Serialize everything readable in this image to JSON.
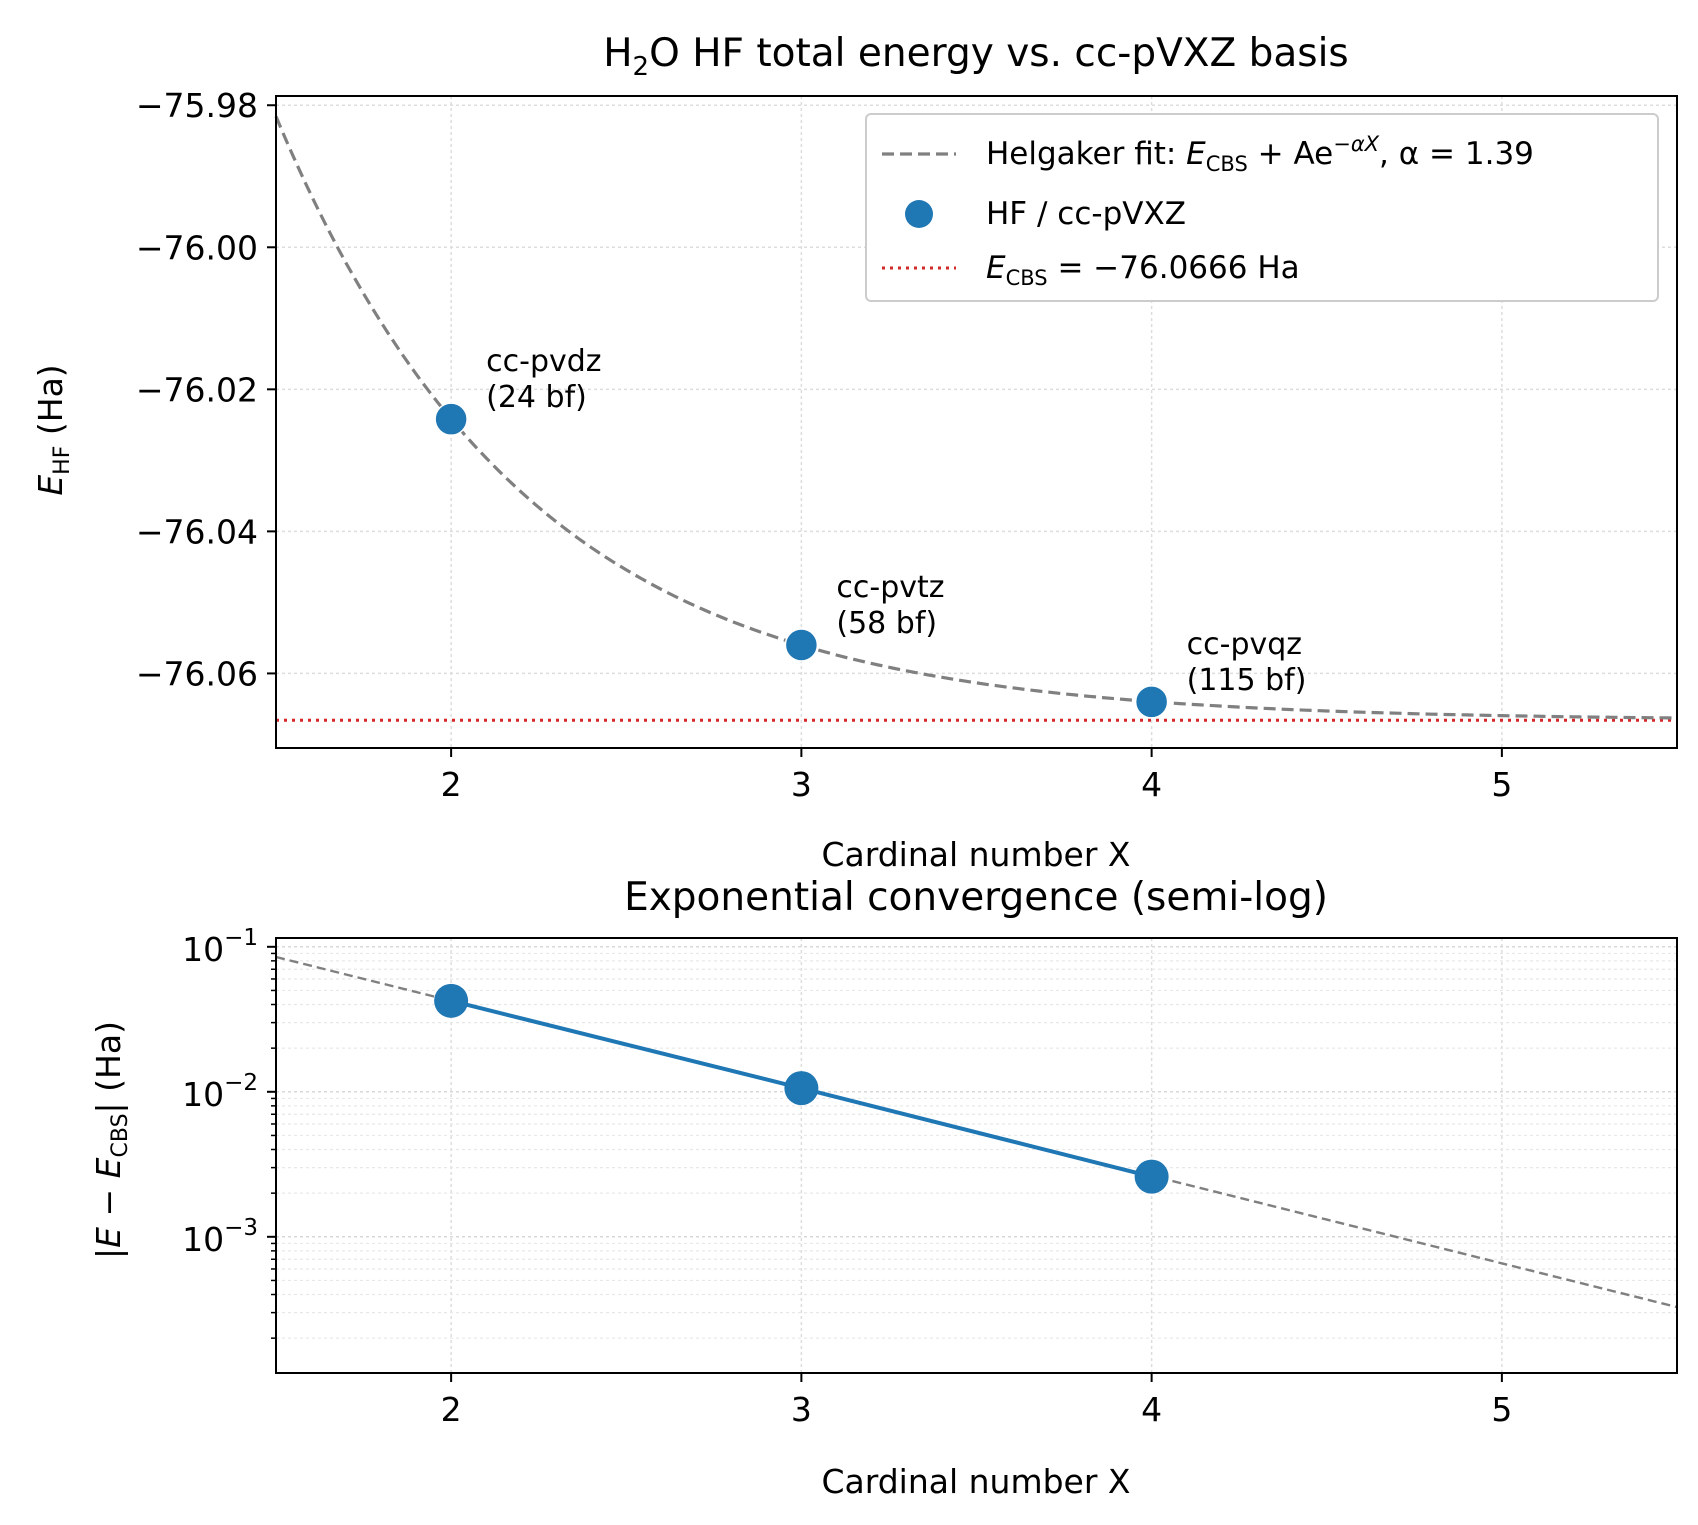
{
  "colors": {
    "points": "#1f77b4",
    "fit": "#808080",
    "cbs_line": "#d62728",
    "grid": "#dddddd",
    "axes": "#000000"
  },
  "chart_data": [
    {
      "type": "scatter",
      "title_main": "H",
      "title_sub": "2",
      "title_rest": "O HF total energy vs. cc-pVXZ basis",
      "xlabel": "Cardinal number X",
      "ylabel_sym": "E",
      "ylabel_sub": "HF",
      "ylabel_unit": " (Ha)",
      "xlim": [
        1.5,
        5.5
      ],
      "ylim": [
        -76.0705,
        -75.9787
      ],
      "x_ticks": [
        2,
        3,
        4,
        5
      ],
      "x_tick_labels": [
        "2",
        "3",
        "4",
        "5"
      ],
      "y_ticks": [
        -75.98,
        -76.0,
        -76.02,
        -76.04,
        -76.06
      ],
      "y_tick_labels": [
        "−75.98",
        "−76.00",
        "−76.02",
        "−76.04",
        "−76.06"
      ],
      "grid": true,
      "series": [
        {
          "name": "HF / cc-pVXZ",
          "kind": "points",
          "x": [
            2,
            3,
            4
          ],
          "y": [
            -76.0242,
            -76.056,
            -76.064
          ]
        },
        {
          "name": "Helgaker fit",
          "kind": "dashed-curve",
          "E_cbs": -76.0666,
          "A": 0.684,
          "alpha": 1.39
        },
        {
          "name": "E_CBS",
          "kind": "dotted-hline",
          "y": -76.0666
        }
      ],
      "annotations": [
        {
          "x": 2,
          "line1": "cc-pvdz",
          "line2": "(24 bf)"
        },
        {
          "x": 3,
          "line1": "cc-pvtz",
          "line2": "(58 bf)"
        },
        {
          "x": 4,
          "line1": "cc-pvqz",
          "line2": "(115 bf)"
        }
      ],
      "legend": {
        "placement": "top-right",
        "fit_prefix": "Helgaker fit: ",
        "fit_formula_E": "E",
        "fit_formula_cbs": "CBS",
        "fit_formula_rest": " + Ae",
        "fit_formula_exp": "−αX",
        "fit_alpha": ", α = 1.39",
        "points": "HF / cc-pVXZ",
        "cbs_E": "E",
        "cbs_sub": "CBS",
        "cbs_rest": " = −76.0666 Ha"
      }
    },
    {
      "type": "line",
      "title": "Exponential convergence (semi-log)",
      "xlabel": "Cardinal number X",
      "ylabel_pre": "|",
      "ylabel_E": "E",
      "ylabel_minus": " − ",
      "ylabel_E2": "E",
      "ylabel_sub": "CBS",
      "ylabel_post": "| (Ha)",
      "y_scale": "log",
      "xlim": [
        1.5,
        5.5
      ],
      "ylim": [
        0.000115,
        0.115
      ],
      "x_ticks": [
        2,
        3,
        4,
        5
      ],
      "x_tick_labels": [
        "2",
        "3",
        "4",
        "5"
      ],
      "y_ticks": [
        0.1,
        0.01,
        0.001
      ],
      "y_tick_base": "10",
      "y_tick_exps": [
        "−1",
        "−2",
        "−3"
      ],
      "grid": true,
      "series": [
        {
          "name": "|E − E_CBS|",
          "kind": "points-line",
          "x": [
            2,
            3,
            4
          ],
          "y": [
            0.0424,
            0.0106,
            0.0026
          ]
        },
        {
          "name": "fit",
          "kind": "dashed-curve",
          "A": 0.684,
          "alpha": 1.39
        }
      ]
    }
  ]
}
